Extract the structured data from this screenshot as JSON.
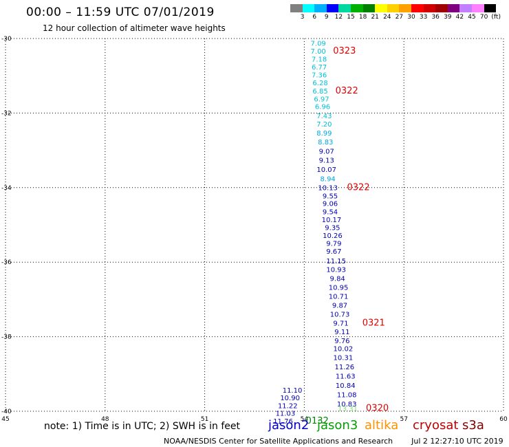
{
  "header": {
    "title": "00:00 – 11:59 UTC 07/01/2019",
    "subtitle": "12 hour collection of altimeter wave heights"
  },
  "colorbar": {
    "swatches": [
      "#808080",
      "#00ffff",
      "#00b0ff",
      "#0000ff",
      "#00d8a0",
      "#00b000",
      "#008000",
      "#ffff00",
      "#ffd000",
      "#ffa000",
      "#ff0000",
      "#d00000",
      "#a00000",
      "#800080",
      "#c080ff",
      "#ff80ff",
      "#000000"
    ],
    "ticks": [
      "3",
      "6",
      "9",
      "12",
      "15",
      "18",
      "21",
      "24",
      "27",
      "30",
      "33",
      "36",
      "39",
      "42",
      "45",
      "70",
      "(ft)"
    ]
  },
  "map": {
    "lat_ticks": [
      "-30",
      "-32",
      "-34",
      "-36",
      "-38",
      "-40"
    ],
    "lon_ticks": [
      "45",
      "48",
      "51",
      "54",
      "57",
      "60"
    ],
    "tick_values": {
      "lat": [
        -30,
        -32,
        -34,
        -36,
        -38,
        -40
      ],
      "lon": [
        45,
        48,
        51,
        54,
        57,
        60
      ]
    }
  },
  "wave_heights": [
    {
      "lat": -30.12,
      "lon": 54.42,
      "value": "7.09",
      "color": "#00c0d8"
    },
    {
      "lat": -30.33,
      "lon": 54.42,
      "value": "7.00",
      "color": "#00c0d8"
    },
    {
      "lat": -30.54,
      "lon": 54.45,
      "value": "7.18",
      "color": "#00c0d8"
    },
    {
      "lat": -30.76,
      "lon": 54.45,
      "value": "6.77",
      "color": "#00c0d8"
    },
    {
      "lat": -30.97,
      "lon": 54.45,
      "value": "7.36",
      "color": "#00c0d8"
    },
    {
      "lat": -31.18,
      "lon": 54.48,
      "value": "6.28",
      "color": "#00c0d8"
    },
    {
      "lat": -31.4,
      "lon": 54.48,
      "value": "6.85",
      "color": "#00c0d8"
    },
    {
      "lat": -31.61,
      "lon": 54.52,
      "value": "6.97",
      "color": "#00c0d8"
    },
    {
      "lat": -31.82,
      "lon": 54.55,
      "value": "6.96",
      "color": "#00c0d8"
    },
    {
      "lat": -32.07,
      "lon": 54.6,
      "value": "7.43",
      "color": "#00c0d8"
    },
    {
      "lat": -32.29,
      "lon": 54.6,
      "value": "7.20",
      "color": "#00c0d8"
    },
    {
      "lat": -32.53,
      "lon": 54.6,
      "value": "8.99",
      "color": "#00a8e0"
    },
    {
      "lat": -32.77,
      "lon": 54.64,
      "value": "8.83",
      "color": "#00a8e0"
    },
    {
      "lat": -33.02,
      "lon": 54.67,
      "value": "9.07",
      "color": "#0000b0"
    },
    {
      "lat": -33.26,
      "lon": 54.67,
      "value": "9.13",
      "color": "#0000b0"
    },
    {
      "lat": -33.51,
      "lon": 54.67,
      "value": "10.07",
      "color": "#0000b0"
    },
    {
      "lat": -33.75,
      "lon": 54.71,
      "value": "8.94",
      "color": "#00a8e0"
    },
    {
      "lat": -33.99,
      "lon": 54.71,
      "value": "10.13",
      "color": "#0000b0"
    },
    {
      "lat": -34.22,
      "lon": 54.78,
      "value": "9.55",
      "color": "#0000b0"
    },
    {
      "lat": -34.42,
      "lon": 54.78,
      "value": "9.06",
      "color": "#0000b0"
    },
    {
      "lat": -34.64,
      "lon": 54.78,
      "value": "9.54",
      "color": "#0000b0"
    },
    {
      "lat": -34.85,
      "lon": 54.82,
      "value": "10.17",
      "color": "#0000b0"
    },
    {
      "lat": -35.06,
      "lon": 54.85,
      "value": "9.35",
      "color": "#0000b0"
    },
    {
      "lat": -35.28,
      "lon": 54.85,
      "value": "10.26",
      "color": "#0000b0"
    },
    {
      "lat": -35.49,
      "lon": 54.89,
      "value": "9.79",
      "color": "#0000b0"
    },
    {
      "lat": -35.7,
      "lon": 54.89,
      "value": "9.67",
      "color": "#0000b0"
    },
    {
      "lat": -35.96,
      "lon": 54.96,
      "value": "11.15",
      "color": "#0000b0"
    },
    {
      "lat": -36.19,
      "lon": 54.96,
      "value": "10.93",
      "color": "#0000b0"
    },
    {
      "lat": -36.43,
      "lon": 55.0,
      "value": "9.84",
      "color": "#0000b0"
    },
    {
      "lat": -36.67,
      "lon": 55.03,
      "value": "10.95",
      "color": "#0000b0"
    },
    {
      "lat": -36.91,
      "lon": 55.03,
      "value": "10.71",
      "color": "#0000b0"
    },
    {
      "lat": -37.15,
      "lon": 55.07,
      "value": "9.87",
      "color": "#0000b0"
    },
    {
      "lat": -37.39,
      "lon": 55.07,
      "value": "10.73",
      "color": "#0000b0"
    },
    {
      "lat": -37.63,
      "lon": 55.1,
      "value": "9.71",
      "color": "#0000b0"
    },
    {
      "lat": -37.86,
      "lon": 55.14,
      "value": "9.11",
      "color": "#0000b0"
    },
    {
      "lat": -38.1,
      "lon": 55.14,
      "value": "9.76",
      "color": "#0000b0"
    },
    {
      "lat": -38.31,
      "lon": 55.17,
      "value": "10.02",
      "color": "#0000b0"
    },
    {
      "lat": -38.55,
      "lon": 55.17,
      "value": "10.31",
      "color": "#0000b0"
    },
    {
      "lat": -38.8,
      "lon": 55.21,
      "value": "11.26",
      "color": "#0000b0"
    },
    {
      "lat": -39.05,
      "lon": 55.24,
      "value": "11.63",
      "color": "#0000b0"
    },
    {
      "lat": -39.3,
      "lon": 55.24,
      "value": "10.84",
      "color": "#0000b0"
    },
    {
      "lat": -39.55,
      "lon": 55.28,
      "value": "11.08",
      "color": "#0000b0"
    },
    {
      "lat": -39.8,
      "lon": 55.28,
      "value": "10.83",
      "color": "#0000b0"
    },
    {
      "lat": -39.92,
      "lon": 55.31,
      "value": "13.31",
      "color": "#80e070"
    },
    {
      "lat": -39.43,
      "lon": 53.64,
      "value": "11.10",
      "color": "#0000b0"
    },
    {
      "lat": -39.63,
      "lon": 53.57,
      "value": "10.90",
      "color": "#0000b0"
    },
    {
      "lat": -39.84,
      "lon": 53.5,
      "value": "11.22",
      "color": "#0000b0"
    },
    {
      "lat": -40.05,
      "lon": 53.43,
      "value": "11.03",
      "color": "#0000b0"
    },
    {
      "lat": -40.26,
      "lon": 53.36,
      "value": "11.76",
      "color": "#0000b0"
    }
  ],
  "pass_times": [
    {
      "lat": -30.33,
      "lon": 55.21,
      "value": "0323",
      "color": "#e00000"
    },
    {
      "lat": -31.4,
      "lon": 55.28,
      "value": "0322",
      "color": "#e00000"
    },
    {
      "lat": -33.99,
      "lon": 55.63,
      "value": "0322",
      "color": "#e00000"
    },
    {
      "lat": -37.63,
      "lon": 56.09,
      "value": "0321",
      "color": "#e00000"
    },
    {
      "lat": -39.92,
      "lon": 56.2,
      "value": "0320",
      "color": "#e00000"
    },
    {
      "lat": -40.26,
      "lon": 54.39,
      "value": "0132",
      "color": "#008000"
    }
  ],
  "note": "note:  1) Time is in UTC;  2) SWH is in feet",
  "satellites": [
    {
      "name": "jason2",
      "color": "#0000d0"
    },
    {
      "name": "jason3",
      "color": "#00a000"
    },
    {
      "name": "altika",
      "color": "#ff9000"
    },
    {
      "name": "cryosat",
      "color": "#c00000"
    },
    {
      "name": "s3a",
      "color": "#800000"
    }
  ],
  "credit": "NOAA/NESDIS Center for Satellite Applications and Research",
  "timestamp": "Jul  2 12:27:10 UTC 2019"
}
